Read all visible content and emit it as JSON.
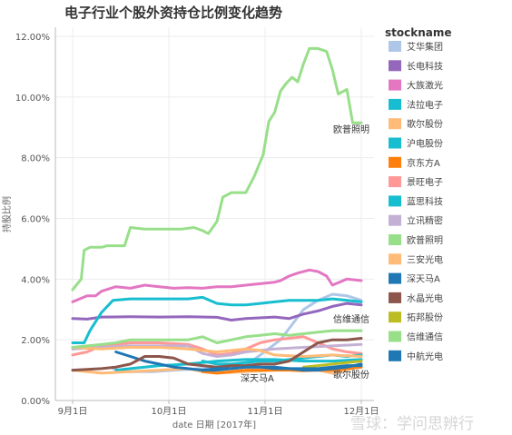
{
  "chart_data": {
    "type": "line",
    "title": "电子行业个股外资持仓比例变化趋势",
    "xlabel": "date 日期 [2017年]",
    "ylabel": "持股比例",
    "x_ticks": [
      "9月1日",
      "10月1日",
      "11月1日",
      "12月1日"
    ],
    "y_ticks": [
      "0.00%",
      "2.00%",
      "4.00%",
      "6.00%",
      "8.00%",
      "10.00%",
      "12.00%"
    ],
    "ylim": [
      0,
      12.3
    ],
    "grid": true,
    "legend_position": "right",
    "legend_title": "stockname",
    "series": [
      {
        "name": "艾华集团",
        "color": "#aec7e8",
        "points": [
          [
            0.14,
            1.05
          ],
          [
            0.18,
            0.95
          ],
          [
            0.28,
            0.95
          ],
          [
            0.35,
            1.0
          ],
          [
            0.45,
            1.05
          ],
          [
            0.55,
            1.1
          ],
          [
            0.6,
            1.15
          ],
          [
            0.65,
            1.5
          ],
          [
            0.72,
            2.0
          ],
          [
            0.76,
            2.5
          ],
          [
            0.8,
            3.0
          ],
          [
            0.85,
            3.3
          ],
          [
            0.9,
            3.5
          ],
          [
            0.95,
            3.45
          ],
          [
            1.0,
            3.3
          ]
        ]
      },
      {
        "name": "长电科技",
        "color": "#9467bd",
        "points": [
          [
            0,
            2.7
          ],
          [
            0.05,
            2.68
          ],
          [
            0.1,
            2.75
          ],
          [
            0.2,
            2.76
          ],
          [
            0.3,
            2.75
          ],
          [
            0.4,
            2.76
          ],
          [
            0.5,
            2.74
          ],
          [
            0.55,
            2.65
          ],
          [
            0.6,
            2.7
          ],
          [
            0.7,
            2.75
          ],
          [
            0.75,
            2.7
          ],
          [
            0.8,
            2.85
          ],
          [
            0.85,
            2.95
          ],
          [
            0.9,
            3.1
          ],
          [
            0.95,
            3.2
          ],
          [
            1.0,
            3.15
          ]
        ]
      },
      {
        "name": "大族激光",
        "color": "#e377c2",
        "points": [
          [
            0,
            3.25
          ],
          [
            0.05,
            3.45
          ],
          [
            0.08,
            3.45
          ],
          [
            0.1,
            3.6
          ],
          [
            0.15,
            3.75
          ],
          [
            0.2,
            3.7
          ],
          [
            0.25,
            3.8
          ],
          [
            0.3,
            3.75
          ],
          [
            0.35,
            3.7
          ],
          [
            0.4,
            3.72
          ],
          [
            0.45,
            3.7
          ],
          [
            0.5,
            3.75
          ],
          [
            0.55,
            3.75
          ],
          [
            0.6,
            3.8
          ],
          [
            0.65,
            3.85
          ],
          [
            0.7,
            3.9
          ],
          [
            0.72,
            3.95
          ],
          [
            0.75,
            4.1
          ],
          [
            0.78,
            4.2
          ],
          [
            0.82,
            4.3
          ],
          [
            0.85,
            4.25
          ],
          [
            0.88,
            4.1
          ],
          [
            0.9,
            3.8
          ],
          [
            0.95,
            4.0
          ],
          [
            1.0,
            3.95
          ]
        ]
      },
      {
        "name": "法拉电子",
        "color": "#17becf",
        "points": [
          [
            0.15,
            1.0
          ],
          [
            0.2,
            1.05
          ],
          [
            0.3,
            1.15
          ],
          [
            0.4,
            1.2
          ],
          [
            0.5,
            1.3
          ],
          [
            0.6,
            1.35
          ],
          [
            0.7,
            1.35
          ],
          [
            0.8,
            1.3
          ],
          [
            0.9,
            1.3
          ],
          [
            1.0,
            1.35
          ]
        ]
      },
      {
        "name": "歌尔股份",
        "color": "#ffbb78",
        "points": [
          [
            0,
            1.0
          ],
          [
            0.1,
            0.9
          ],
          [
            0.2,
            0.95
          ],
          [
            0.3,
            1.0
          ],
          [
            0.4,
            1.05
          ],
          [
            0.45,
            0.95
          ],
          [
            0.5,
            0.9
          ],
          [
            0.6,
            0.95
          ],
          [
            0.7,
            1.0
          ],
          [
            0.8,
            1.05
          ],
          [
            0.85,
            1.0
          ],
          [
            0.9,
            0.9
          ],
          [
            0.95,
            1.0
          ],
          [
            1.0,
            1.15
          ]
        ]
      },
      {
        "name": "沪电股份",
        "color": "#17becf",
        "points": [
          [
            0,
            1.9
          ],
          [
            0.04,
            1.9
          ],
          [
            0.06,
            2.3
          ],
          [
            0.1,
            2.9
          ],
          [
            0.14,
            3.3
          ],
          [
            0.2,
            3.35
          ],
          [
            0.3,
            3.35
          ],
          [
            0.4,
            3.35
          ],
          [
            0.45,
            3.4
          ],
          [
            0.5,
            3.2
          ],
          [
            0.55,
            3.15
          ],
          [
            0.6,
            3.15
          ],
          [
            0.65,
            3.2
          ],
          [
            0.7,
            3.25
          ],
          [
            0.75,
            3.3
          ],
          [
            0.8,
            3.3
          ],
          [
            0.85,
            3.3
          ],
          [
            0.9,
            3.35
          ],
          [
            0.95,
            3.3
          ],
          [
            1.0,
            3.25
          ]
        ]
      },
      {
        "name": "京东方A",
        "color": "#ff7f0e",
        "points": [
          [
            0.45,
            0.95
          ],
          [
            0.5,
            0.9
          ],
          [
            0.55,
            0.95
          ],
          [
            0.6,
            1.0
          ],
          [
            0.65,
            1.0
          ],
          [
            0.7,
            1.0
          ],
          [
            0.75,
            1.0
          ],
          [
            0.8,
            0.98
          ],
          [
            0.85,
            1.0
          ],
          [
            0.9,
            1.0
          ],
          [
            0.95,
            1.05
          ],
          [
            1.0,
            1.1
          ]
        ]
      },
      {
        "name": "景旺电子",
        "color": "#ff9896",
        "points": [
          [
            0,
            1.5
          ],
          [
            0.05,
            1.6
          ],
          [
            0.1,
            1.8
          ],
          [
            0.15,
            1.85
          ],
          [
            0.2,
            1.9
          ],
          [
            0.3,
            1.9
          ],
          [
            0.4,
            1.85
          ],
          [
            0.45,
            1.7
          ],
          [
            0.5,
            1.5
          ],
          [
            0.55,
            1.55
          ],
          [
            0.6,
            1.7
          ],
          [
            0.65,
            1.9
          ],
          [
            0.7,
            2.0
          ],
          [
            0.75,
            2.05
          ],
          [
            0.8,
            2.1
          ],
          [
            0.85,
            1.9
          ],
          [
            0.9,
            1.7
          ],
          [
            0.95,
            1.6
          ],
          [
            1.0,
            1.55
          ]
        ]
      },
      {
        "name": "蓝思科技",
        "color": "#17becf",
        "points": [
          [
            0.45,
            1.3
          ],
          [
            0.5,
            1.2
          ],
          [
            0.55,
            1.2
          ],
          [
            0.6,
            1.25
          ],
          [
            0.65,
            1.3
          ],
          [
            0.7,
            1.3
          ],
          [
            0.75,
            1.35
          ],
          [
            0.8,
            1.4
          ],
          [
            0.85,
            1.45
          ],
          [
            0.9,
            1.5
          ],
          [
            0.95,
            1.45
          ],
          [
            1.0,
            1.5
          ]
        ]
      },
      {
        "name": "立讯精密",
        "color": "#c5b0d5",
        "points": [
          [
            0,
            1.7
          ],
          [
            0.1,
            1.75
          ],
          [
            0.2,
            1.8
          ],
          [
            0.3,
            1.8
          ],
          [
            0.4,
            1.8
          ],
          [
            0.45,
            1.55
          ],
          [
            0.5,
            1.45
          ],
          [
            0.55,
            1.5
          ],
          [
            0.6,
            1.6
          ],
          [
            0.7,
            1.7
          ],
          [
            0.8,
            1.75
          ],
          [
            0.9,
            1.8
          ],
          [
            1.0,
            1.85
          ]
        ]
      },
      {
        "name": "欧普照明",
        "color": "#98df8a",
        "points": [
          [
            0,
            3.65
          ],
          [
            0.03,
            4.0
          ],
          [
            0.04,
            4.95
          ],
          [
            0.06,
            5.05
          ],
          [
            0.1,
            5.05
          ],
          [
            0.12,
            5.1
          ],
          [
            0.18,
            5.1
          ],
          [
            0.2,
            5.7
          ],
          [
            0.25,
            5.65
          ],
          [
            0.3,
            5.65
          ],
          [
            0.38,
            5.65
          ],
          [
            0.42,
            5.7
          ],
          [
            0.45,
            5.6
          ],
          [
            0.47,
            5.5
          ],
          [
            0.5,
            5.9
          ],
          [
            0.52,
            6.7
          ],
          [
            0.55,
            6.85
          ],
          [
            0.6,
            6.85
          ],
          [
            0.63,
            7.4
          ],
          [
            0.66,
            8.1
          ],
          [
            0.68,
            9.2
          ],
          [
            0.7,
            9.5
          ],
          [
            0.72,
            10.2
          ],
          [
            0.74,
            10.45
          ],
          [
            0.76,
            10.65
          ],
          [
            0.78,
            10.5
          ],
          [
            0.8,
            11.1
          ],
          [
            0.82,
            11.6
          ],
          [
            0.85,
            11.6
          ],
          [
            0.88,
            11.5
          ],
          [
            0.9,
            10.9
          ],
          [
            0.92,
            10.1
          ],
          [
            0.94,
            10.2
          ],
          [
            0.95,
            10.25
          ],
          [
            0.97,
            9.15
          ],
          [
            1.0,
            9.15
          ]
        ]
      },
      {
        "name": "三安光电",
        "color": "#ffbb78",
        "points": [
          [
            0,
            1.75
          ],
          [
            0.1,
            1.7
          ],
          [
            0.2,
            1.75
          ],
          [
            0.3,
            1.75
          ],
          [
            0.4,
            1.7
          ],
          [
            0.45,
            1.65
          ],
          [
            0.5,
            1.6
          ],
          [
            0.55,
            1.65
          ],
          [
            0.6,
            1.7
          ],
          [
            0.65,
            1.65
          ],
          [
            0.7,
            1.5
          ],
          [
            0.8,
            1.45
          ],
          [
            0.9,
            1.5
          ],
          [
            1.0,
            1.45
          ]
        ]
      },
      {
        "name": "深天马A",
        "color": "#1f77b4",
        "points": [
          [
            0.15,
            1.6
          ],
          [
            0.2,
            1.45
          ],
          [
            0.25,
            1.3
          ],
          [
            0.3,
            1.2
          ],
          [
            0.35,
            1.1
          ],
          [
            0.4,
            1.05
          ],
          [
            0.45,
            1.0
          ],
          [
            0.5,
            1.0
          ],
          [
            0.55,
            1.05
          ],
          [
            0.6,
            1.1
          ],
          [
            0.65,
            1.1
          ],
          [
            0.7,
            1.1
          ],
          [
            0.75,
            1.05
          ],
          [
            0.8,
            1.0
          ],
          [
            0.85,
            1.0
          ],
          [
            0.9,
            1.05
          ],
          [
            0.95,
            1.1
          ],
          [
            1.0,
            1.2
          ]
        ]
      },
      {
        "name": "水晶光电",
        "color": "#8c564b",
        "points": [
          [
            0,
            1.0
          ],
          [
            0.1,
            1.05
          ],
          [
            0.15,
            1.1
          ],
          [
            0.2,
            1.2
          ],
          [
            0.25,
            1.45
          ],
          [
            0.3,
            1.45
          ],
          [
            0.35,
            1.4
          ],
          [
            0.4,
            1.2
          ],
          [
            0.45,
            1.15
          ],
          [
            0.5,
            1.1
          ],
          [
            0.55,
            1.15
          ],
          [
            0.6,
            1.15
          ],
          [
            0.65,
            1.2
          ],
          [
            0.7,
            1.2
          ],
          [
            0.75,
            1.3
          ],
          [
            0.8,
            1.6
          ],
          [
            0.85,
            1.9
          ],
          [
            0.9,
            2.0
          ],
          [
            0.95,
            2.0
          ],
          [
            1.0,
            2.05
          ]
        ]
      },
      {
        "name": "拓邦股份",
        "color": "#bcbd22",
        "points": [
          [
            0.8,
            1.1
          ],
          [
            0.85,
            1.15
          ],
          [
            0.9,
            1.2
          ],
          [
            0.95,
            1.25
          ],
          [
            1.0,
            1.3
          ]
        ]
      },
      {
        "name": "信维通信",
        "color": "#98df8a",
        "points": [
          [
            0,
            1.75
          ],
          [
            0.05,
            1.8
          ],
          [
            0.1,
            1.85
          ],
          [
            0.15,
            1.9
          ],
          [
            0.2,
            2.0
          ],
          [
            0.3,
            2.0
          ],
          [
            0.4,
            2.0
          ],
          [
            0.45,
            2.1
          ],
          [
            0.5,
            1.9
          ],
          [
            0.55,
            2.0
          ],
          [
            0.6,
            2.1
          ],
          [
            0.65,
            2.15
          ],
          [
            0.7,
            2.2
          ],
          [
            0.75,
            2.15
          ],
          [
            0.8,
            2.2
          ],
          [
            0.85,
            2.25
          ],
          [
            0.9,
            2.3
          ],
          [
            0.95,
            2.3
          ],
          [
            1.0,
            2.3
          ]
        ]
      },
      {
        "name": "中航光电",
        "color": "#1f77b4",
        "points": [
          [
            0.45,
            1.0
          ],
          [
            0.5,
            1.05
          ],
          [
            0.55,
            1.05
          ],
          [
            0.6,
            1.1
          ],
          [
            0.65,
            1.1
          ],
          [
            0.7,
            1.05
          ],
          [
            0.75,
            1.05
          ],
          [
            0.8,
            1.05
          ],
          [
            0.85,
            1.05
          ],
          [
            0.9,
            1.1
          ],
          [
            0.95,
            1.15
          ],
          [
            1.0,
            1.15
          ]
        ]
      }
    ],
    "annotations": [
      "欧普照明",
      "信维通信",
      "深天马A",
      "歌尔股份"
    ]
  },
  "watermark": "雪球：学问思辨行"
}
